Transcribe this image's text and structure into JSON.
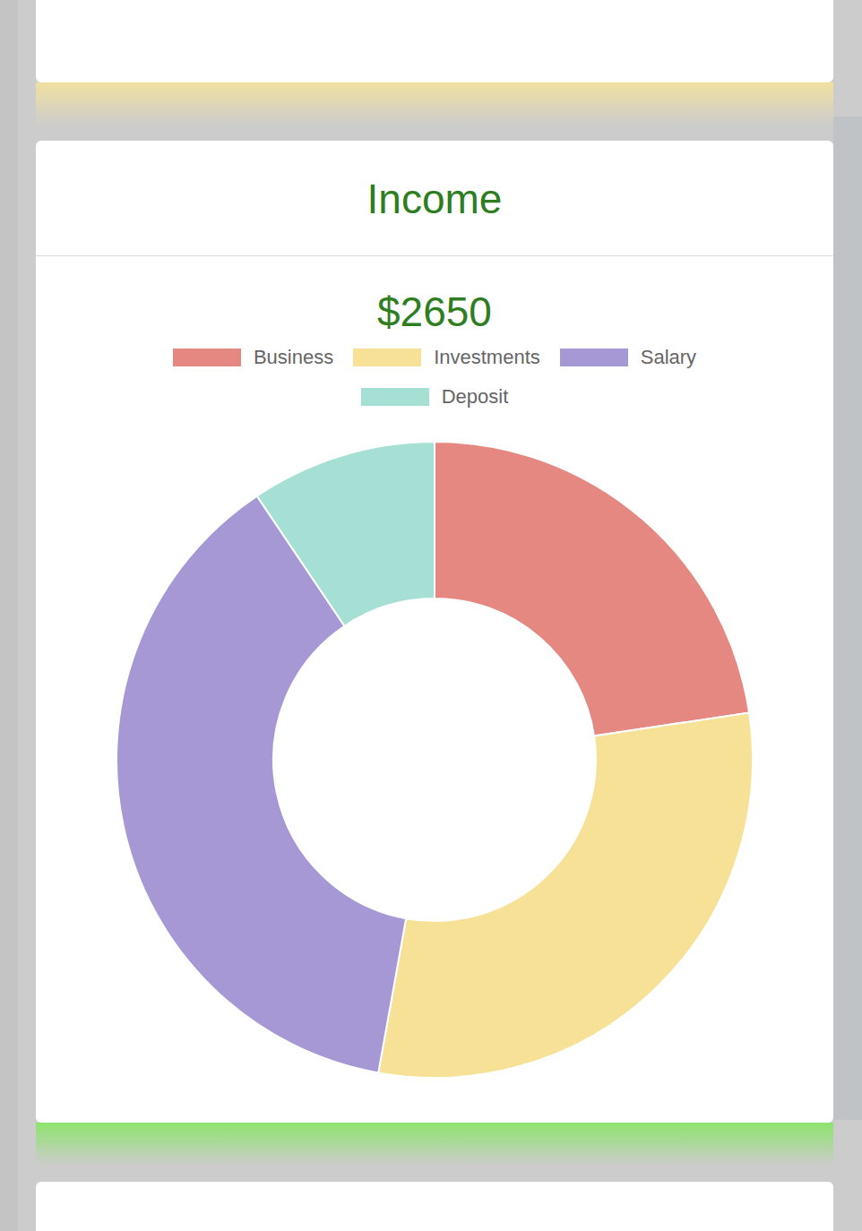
{
  "chart_data": {
    "type": "doughnut",
    "title": "Income",
    "subtitle": "$2650",
    "categories": [
      "Business",
      "Investments",
      "Salary",
      "Deposit"
    ],
    "values": [
      600,
      800,
      1000,
      250
    ],
    "colors": [
      "#e58882",
      "#f7e196",
      "#a698d5",
      "#a6e0d5"
    ],
    "legend": "top"
  }
}
